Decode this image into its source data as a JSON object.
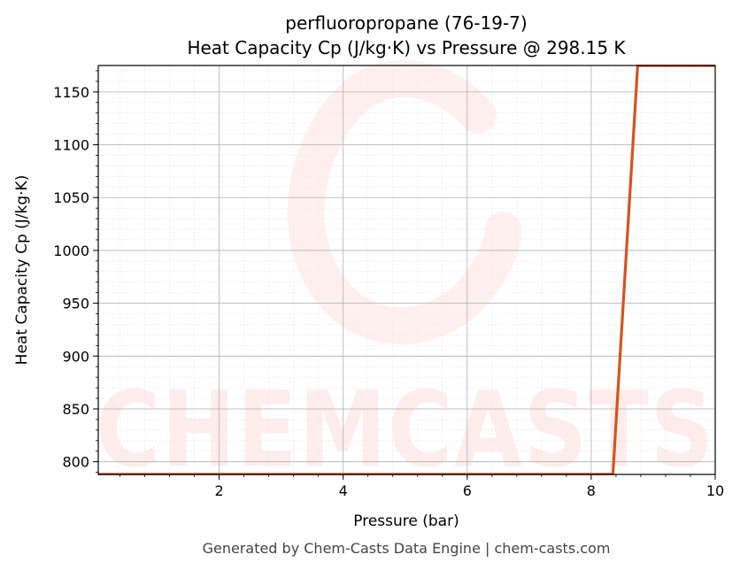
{
  "chart_data": {
    "type": "line",
    "title": "perfluoropropane (76-19-7)",
    "subtitle": "Heat Capacity Cp (J/kg·K) vs Pressure @ 298.15 K",
    "xlabel": "Pressure (bar)",
    "ylabel": "Heat Capacity Cp (J/kg·K)",
    "xlim": [
      0.05,
      10
    ],
    "ylim": [
      788,
      1175
    ],
    "xticks": [
      2,
      4,
      6,
      8,
      10
    ],
    "yticks": [
      800,
      850,
      900,
      950,
      1000,
      1050,
      1100,
      1150
    ],
    "grid": true,
    "series": [
      {
        "color": "#d4541e",
        "x": [
          0.05,
          8.35,
          8.75,
          10
        ],
        "y": [
          788,
          788,
          1175,
          1175
        ]
      }
    ]
  },
  "watermark": {
    "text": "CHEMCASTS",
    "color": "#ff6a5a"
  },
  "footer": "Generated by Chem-Casts Data Engine | chem-casts.com"
}
